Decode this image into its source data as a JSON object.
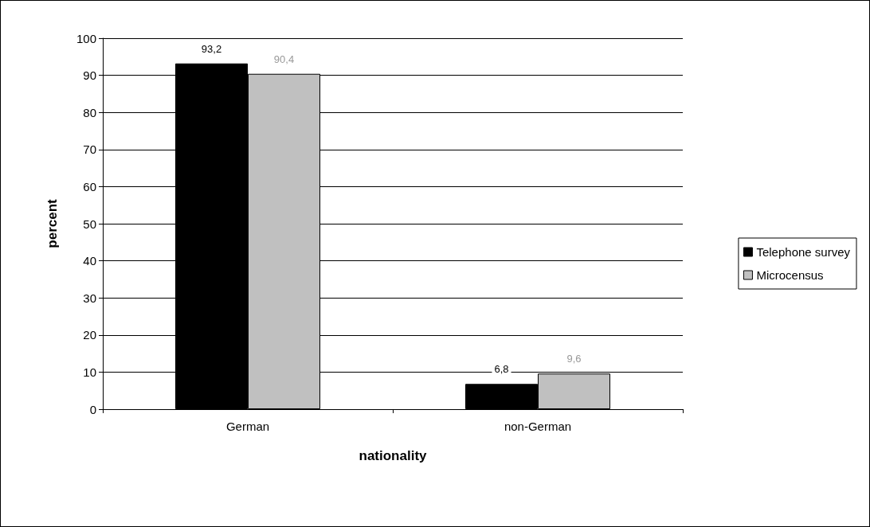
{
  "chart_data": {
    "type": "bar",
    "xlabel": "nationality",
    "ylabel": "percent",
    "categories": [
      "German",
      "non-German"
    ],
    "series": [
      {
        "name": "Telephone survey",
        "color": "#000000",
        "values": [
          93.2,
          6.8
        ],
        "value_labels": [
          "93,2",
          "6,8"
        ]
      },
      {
        "name": "Microcensus",
        "color": "#c0c0c0",
        "values": [
          90.4,
          9.6
        ],
        "value_labels": [
          "90,4",
          "9,6"
        ]
      }
    ],
    "ylim": [
      0,
      100
    ],
    "yticks": [
      0,
      10,
      20,
      30,
      40,
      50,
      60,
      70,
      80,
      90,
      100
    ],
    "grid": "y",
    "legend": "right"
  }
}
